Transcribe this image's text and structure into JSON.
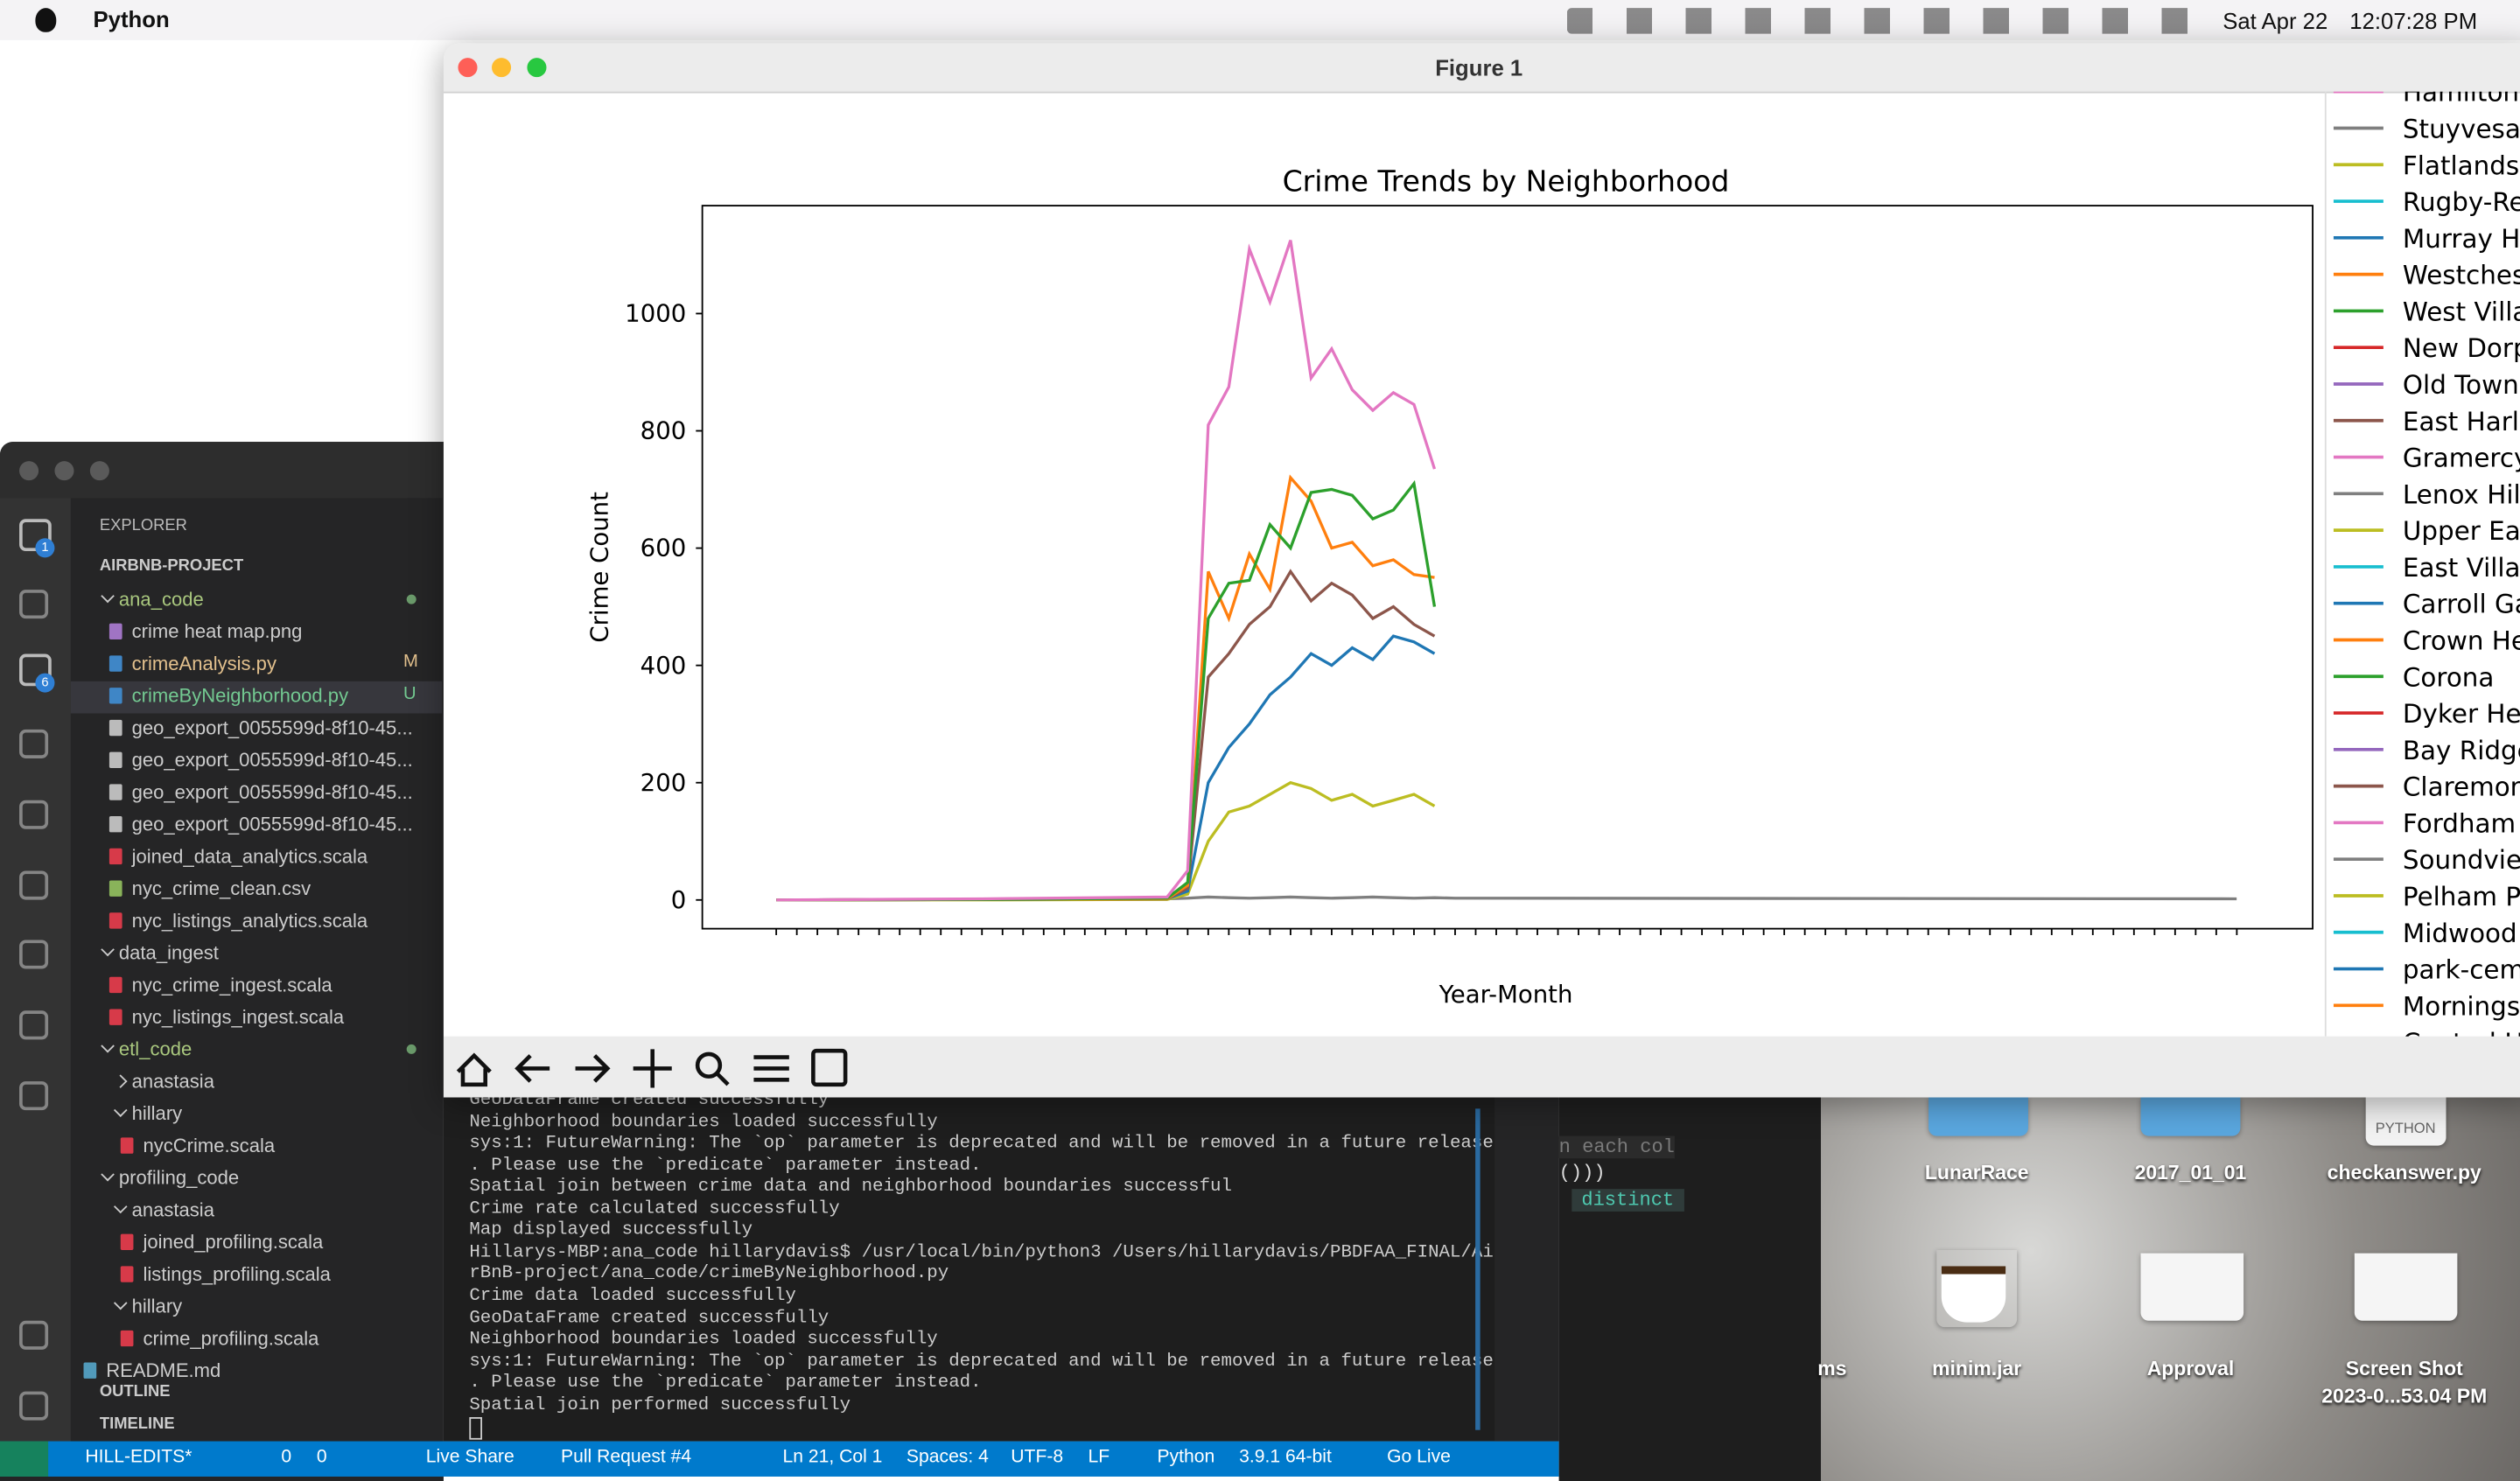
{
  "menubar": {
    "app": "Python",
    "date": "Sat Apr 22",
    "time": "12:07:28 PM"
  },
  "figure": {
    "title": "Figure 1"
  },
  "chart_data": {
    "type": "line",
    "title": "Crime Trends by Neighborhood",
    "x_label": "Year-Month",
    "y_label": "Crime Count",
    "x": [
      0,
      10,
      19,
      20,
      21,
      22,
      23,
      24,
      25,
      26,
      27,
      28,
      29,
      30,
      31,
      32,
      33,
      71
    ],
    "xlim": [
      -3.6,
      74.7
    ],
    "ylim": [
      -49,
      1184
    ],
    "yticks": [
      0,
      200,
      400,
      600,
      800,
      1000
    ],
    "series": [
      {
        "color": "#7f7f7f",
        "values": [
          0,
          1,
          2,
          3,
          5,
          4,
          3,
          4,
          5,
          4,
          3,
          4,
          5,
          4,
          3,
          4,
          3,
          2
        ]
      },
      {
        "color": "#bcbd22",
        "values": [
          0,
          0,
          1,
          10,
          100,
          150,
          160,
          180,
          200,
          190,
          170,
          180,
          160,
          170,
          180,
          160,
          null,
          null
        ]
      },
      {
        "color": "#1f77b4",
        "values": [
          0,
          1,
          2,
          15,
          200,
          260,
          300,
          350,
          380,
          420,
          400,
          430,
          410,
          450,
          440,
          420,
          null,
          null
        ]
      },
      {
        "color": "#8c564b",
        "values": [
          0,
          1,
          2,
          20,
          380,
          420,
          470,
          500,
          560,
          510,
          540,
          520,
          480,
          500,
          470,
          450,
          null,
          null
        ]
      },
      {
        "color": "#ff7f0e",
        "values": [
          0,
          1,
          2,
          25,
          560,
          480,
          590,
          530,
          720,
          680,
          600,
          610,
          570,
          580,
          555,
          550,
          null,
          null
        ]
      },
      {
        "color": "#2ca02c",
        "values": [
          0,
          1,
          3,
          30,
          480,
          540,
          545,
          640,
          600,
          695,
          700,
          690,
          650,
          665,
          710,
          500,
          null,
          null
        ]
      },
      {
        "color": "#e377c2",
        "values": [
          0,
          2,
          5,
          50,
          810,
          875,
          1110,
          1020,
          1125,
          890,
          940,
          870,
          835,
          865,
          845,
          735,
          null,
          null
        ]
      }
    ],
    "legend": [
      {
        "name": "Hamilton",
        "color": "#e377c2"
      },
      {
        "name": "Stuyvesan",
        "color": "#7f7f7f"
      },
      {
        "name": "Flatlands",
        "color": "#bcbd22"
      },
      {
        "name": "Rugby-Re",
        "color": "#17becf"
      },
      {
        "name": "Murray Hi",
        "color": "#1f77b4"
      },
      {
        "name": "Westchest",
        "color": "#ff7f0e"
      },
      {
        "name": "West Villa",
        "color": "#2ca02c"
      },
      {
        "name": "New Dorp",
        "color": "#d62728"
      },
      {
        "name": "Old Town-",
        "color": "#9467bd"
      },
      {
        "name": "East Harle",
        "color": "#8c564b"
      },
      {
        "name": "Gramercy",
        "color": "#e377c2"
      },
      {
        "name": "Lenox Hill",
        "color": "#7f7f7f"
      },
      {
        "name": "Upper Eas",
        "color": "#bcbd22"
      },
      {
        "name": "East Villag",
        "color": "#17becf"
      },
      {
        "name": "Carroll Ga",
        "color": "#1f77b4"
      },
      {
        "name": "Crown He",
        "color": "#ff7f0e"
      },
      {
        "name": "Corona",
        "color": "#2ca02c"
      },
      {
        "name": "Dyker Hei",
        "color": "#d62728"
      },
      {
        "name": "Bay Ridge",
        "color": "#9467bd"
      },
      {
        "name": "Claremon",
        "color": "#8c564b"
      },
      {
        "name": "Fordham S",
        "color": "#e377c2"
      },
      {
        "name": "Soundview",
        "color": "#7f7f7f"
      },
      {
        "name": "Pelham Pa",
        "color": "#bcbd22"
      },
      {
        "name": "Midwood",
        "color": "#17becf"
      },
      {
        "name": "park-ceme",
        "color": "#1f77b4"
      },
      {
        "name": "Morningsi",
        "color": "#ff7f0e"
      },
      {
        "name": "Central H",
        "color": "#2ca02c"
      }
    ]
  },
  "vscode": {
    "section": "EXPLORER",
    "project": "AIRBNB-PROJECT",
    "activity_badges": [
      "1",
      "6"
    ],
    "tree": [
      {
        "label": "ana_code"
      },
      {
        "label": "crime heat map.png"
      },
      {
        "label": "crimeAnalysis.py",
        "badge": "M"
      },
      {
        "label": "crimeByNeighborhood.py",
        "badge": "U"
      },
      {
        "label": "geo_export_0055599d-8f10-45..."
      },
      {
        "label": "geo_export_0055599d-8f10-45..."
      },
      {
        "label": "geo_export_0055599d-8f10-45..."
      },
      {
        "label": "geo_export_0055599d-8f10-45..."
      },
      {
        "label": "joined_data_analytics.scala"
      },
      {
        "label": "nyc_crime_clean.csv"
      },
      {
        "label": "nyc_listings_analytics.scala"
      },
      {
        "label": "data_ingest"
      },
      {
        "label": "nyc_crime_ingest.scala"
      },
      {
        "label": "nyc_listings_ingest.scala"
      },
      {
        "label": "etl_code"
      },
      {
        "label": "anastasia"
      },
      {
        "label": "hillary"
      },
      {
        "label": "nycCrime.scala"
      },
      {
        "label": "profiling_code"
      },
      {
        "label": "anastasia"
      },
      {
        "label": "joined_profiling.scala"
      },
      {
        "label": "listings_profiling.scala"
      },
      {
        "label": "hillary"
      },
      {
        "label": "crime_profiling.scala"
      },
      {
        "label": "README.md"
      }
    ],
    "outline": "OUTLINE",
    "timeline": "TIMELINE",
    "status": [
      "HILL-EDITS*",
      "0",
      "0",
      "Live Share",
      "Pull Request #4",
      "Ln 21, Col 1",
      "Spaces: 4",
      "UTF-8",
      "LF",
      "Python",
      "3.9.1 64-bit",
      "Go Live"
    ]
  },
  "terminal": {
    "lines": [
      "GeoDataFrame created successfully",
      "Neighborhood boundaries loaded successfully",
      "sys:1: FutureWarning: The `op` parameter is deprecated and will be removed in a future release",
      ". Please use the `predicate` parameter instead.",
      "Spatial join between crime data and neighborhood boundaries successful",
      "Crime rate calculated successfully",
      "Map displayed successfully",
      "Hillarys-MBP:ana_code hillarydavis$ /usr/local/bin/python3 /Users/hillarydavis/PBDFAA_FINAL/Ai",
      "rBnB-project/ana_code/crimeByNeighborhood.py",
      "Crime data loaded successfully",
      "GeoDataFrame created successfully",
      "Neighborhood boundaries loaded successfully",
      "sys:1: FutureWarning: The `op` parameter is deprecated and will be removed in a future release",
      ". Please use the `predicate` parameter instead.",
      "Spatial join performed successfully"
    ]
  },
  "editor_fragments": [
    "n each col",
    "()))",
    "distinct"
  ],
  "desktop": {
    "python_tag": "PYTHON",
    "icons": [
      "LunarRace",
      "2017_01_01",
      "checkanswer.py",
      "ms",
      "minim.jar",
      "Approval",
      "Screen Shot",
      "2023-0...53.04 PM"
    ]
  }
}
